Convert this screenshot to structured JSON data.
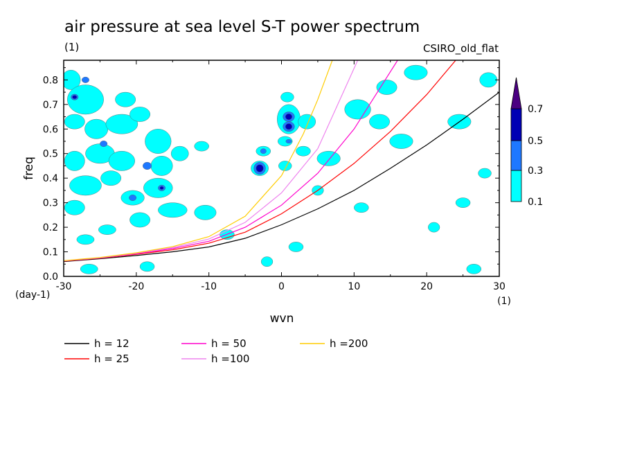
{
  "chart_data": {
    "type": "heatmap",
    "title": "air pressure at sea level S-T power spectrum",
    "subtitle_left": "(1)",
    "subtitle_right": "CSIRO_old_flat",
    "xlabel": "wvn",
    "ylabel": "freq",
    "x_unit": "(1)",
    "y_unit": "(day-1)",
    "xlim": [
      -30,
      30
    ],
    "ylim": [
      0,
      0.88
    ],
    "x_ticks": [
      -30,
      -20,
      -10,
      0,
      10,
      20,
      30
    ],
    "x_tick_labels": [
      "-30",
      "-20",
      "-10",
      "0",
      "10",
      "20",
      "30"
    ],
    "y_ticks": [
      0,
      0.1,
      0.2,
      0.3,
      0.4,
      0.5,
      0.6,
      0.7,
      0.8
    ],
    "y_tick_labels": [
      "0.0",
      "0.1",
      "0.2",
      "0.3",
      "0.4",
      "0.5",
      "0.6",
      "0.7",
      "0.8"
    ],
    "colorbar": {
      "levels": [
        0.1,
        0.3,
        0.5,
        0.7
      ],
      "level_labels": [
        "0.1",
        "0.3",
        "0.5",
        "0.7"
      ],
      "colors": [
        "#00ffff",
        "#1e78ff",
        "#0000b4",
        "#4b0082"
      ]
    },
    "series": [
      {
        "name": "h = 12",
        "color": "#000000",
        "x": [
          -30,
          -25,
          -20,
          -15,
          -10,
          -5,
          0,
          5,
          10,
          15,
          20,
          25,
          30
        ],
        "y": [
          0.06,
          0.072,
          0.085,
          0.1,
          0.12,
          0.155,
          0.21,
          0.275,
          0.35,
          0.44,
          0.535,
          0.64,
          0.75
        ]
      },
      {
        "name": "h = 25",
        "color": "#ff0000",
        "x": [
          -30,
          -25,
          -20,
          -15,
          -10,
          -5,
          0,
          5,
          10,
          15,
          20,
          24
        ],
        "y": [
          0.062,
          0.074,
          0.09,
          0.108,
          0.135,
          0.18,
          0.255,
          0.35,
          0.46,
          0.59,
          0.74,
          0.88
        ]
      },
      {
        "name": "h = 50",
        "color": "#ff00cc",
        "x": [
          -30,
          -25,
          -20,
          -15,
          -10,
          -5,
          0,
          5,
          10,
          16
        ],
        "y": [
          0.063,
          0.075,
          0.092,
          0.113,
          0.143,
          0.2,
          0.29,
          0.42,
          0.6,
          0.88
        ]
      },
      {
        "name": "h =100",
        "color": "#ee82ee",
        "x": [
          -30,
          -25,
          -20,
          -15,
          -10,
          -5,
          0,
          5,
          10.5
        ],
        "y": [
          0.063,
          0.076,
          0.094,
          0.117,
          0.152,
          0.22,
          0.34,
          0.52,
          0.88
        ]
      },
      {
        "name": "h =200",
        "color": "#ffcc00",
        "x": [
          -30,
          -25,
          -20,
          -15,
          -10,
          -5,
          0,
          3,
          5,
          7
        ],
        "y": [
          0.064,
          0.077,
          0.096,
          0.121,
          0.162,
          0.245,
          0.41,
          0.58,
          0.72,
          0.88
        ]
      }
    ],
    "contour_blobs": [
      {
        "x": -29,
        "y": 0.8,
        "rx": 1.3,
        "ry": 0.04,
        "level": 0.1
      },
      {
        "x": -27,
        "y": 0.72,
        "rx": 2.5,
        "ry": 0.06,
        "level": 0.1
      },
      {
        "x": -28.5,
        "y": 0.63,
        "rx": 1.4,
        "ry": 0.03,
        "level": 0.1
      },
      {
        "x": -25.5,
        "y": 0.6,
        "rx": 1.6,
        "ry": 0.04,
        "level": 0.1
      },
      {
        "x": -22,
        "y": 0.62,
        "rx": 2.2,
        "ry": 0.04,
        "level": 0.1
      },
      {
        "x": -19.5,
        "y": 0.66,
        "rx": 1.4,
        "ry": 0.03,
        "level": 0.1
      },
      {
        "x": -21.5,
        "y": 0.72,
        "rx": 1.4,
        "ry": 0.03,
        "level": 0.1
      },
      {
        "x": -25,
        "y": 0.5,
        "rx": 2.0,
        "ry": 0.04,
        "level": 0.1
      },
      {
        "x": -28.5,
        "y": 0.47,
        "rx": 1.4,
        "ry": 0.04,
        "level": 0.1
      },
      {
        "x": -22,
        "y": 0.47,
        "rx": 1.8,
        "ry": 0.04,
        "level": 0.1
      },
      {
        "x": -17,
        "y": 0.55,
        "rx": 1.8,
        "ry": 0.05,
        "level": 0.1
      },
      {
        "x": -16.5,
        "y": 0.45,
        "rx": 1.5,
        "ry": 0.04,
        "level": 0.1
      },
      {
        "x": -14,
        "y": 0.5,
        "rx": 1.2,
        "ry": 0.03,
        "level": 0.1
      },
      {
        "x": -27,
        "y": 0.37,
        "rx": 2.2,
        "ry": 0.04,
        "level": 0.1
      },
      {
        "x": -23.5,
        "y": 0.4,
        "rx": 1.4,
        "ry": 0.03,
        "level": 0.1
      },
      {
        "x": -20.5,
        "y": 0.32,
        "rx": 1.6,
        "ry": 0.03,
        "level": 0.1
      },
      {
        "x": -17,
        "y": 0.36,
        "rx": 2.0,
        "ry": 0.04,
        "level": 0.1
      },
      {
        "x": -15,
        "y": 0.27,
        "rx": 2.0,
        "ry": 0.03,
        "level": 0.1
      },
      {
        "x": -19.5,
        "y": 0.23,
        "rx": 1.4,
        "ry": 0.03,
        "level": 0.1
      },
      {
        "x": -28.5,
        "y": 0.28,
        "rx": 1.4,
        "ry": 0.03,
        "level": 0.1
      },
      {
        "x": -24,
        "y": 0.19,
        "rx": 1.2,
        "ry": 0.02,
        "level": 0.1
      },
      {
        "x": -27,
        "y": 0.15,
        "rx": 1.2,
        "ry": 0.02,
        "level": 0.1
      },
      {
        "x": -26.5,
        "y": 0.03,
        "rx": 1.2,
        "ry": 0.02,
        "level": 0.1
      },
      {
        "x": -18.5,
        "y": 0.04,
        "rx": 1.0,
        "ry": 0.02,
        "level": 0.1
      },
      {
        "x": -11,
        "y": 0.53,
        "rx": 1.0,
        "ry": 0.02,
        "level": 0.1
      },
      {
        "x": -10.5,
        "y": 0.26,
        "rx": 1.5,
        "ry": 0.03,
        "level": 0.1
      },
      {
        "x": -7.5,
        "y": 0.17,
        "rx": 1.0,
        "ry": 0.02,
        "level": 0.1
      },
      {
        "x": -3,
        "y": 0.44,
        "rx": 1.2,
        "ry": 0.03,
        "level": 0.1
      },
      {
        "x": -2.5,
        "y": 0.51,
        "rx": 1.0,
        "ry": 0.02,
        "level": 0.1
      },
      {
        "x": 1,
        "y": 0.64,
        "rx": 1.6,
        "ry": 0.06,
        "level": 0.1
      },
      {
        "x": 0.8,
        "y": 0.73,
        "rx": 0.9,
        "ry": 0.02,
        "level": 0.1
      },
      {
        "x": 0.5,
        "y": 0.55,
        "rx": 1.0,
        "ry": 0.02,
        "level": 0.1
      },
      {
        "x": 3.5,
        "y": 0.63,
        "rx": 1.2,
        "ry": 0.03,
        "level": 0.1
      },
      {
        "x": 3,
        "y": 0.51,
        "rx": 1.0,
        "ry": 0.02,
        "level": 0.1
      },
      {
        "x": 0.5,
        "y": 0.45,
        "rx": 0.9,
        "ry": 0.02,
        "level": 0.1
      },
      {
        "x": 6.5,
        "y": 0.48,
        "rx": 1.6,
        "ry": 0.03,
        "level": 0.1
      },
      {
        "x": 10.5,
        "y": 0.68,
        "rx": 1.8,
        "ry": 0.04,
        "level": 0.1
      },
      {
        "x": 13.5,
        "y": 0.63,
        "rx": 1.4,
        "ry": 0.03,
        "level": 0.1
      },
      {
        "x": 16.5,
        "y": 0.55,
        "rx": 1.6,
        "ry": 0.03,
        "level": 0.1
      },
      {
        "x": 14.5,
        "y": 0.77,
        "rx": 1.4,
        "ry": 0.03,
        "level": 0.1
      },
      {
        "x": 18.5,
        "y": 0.83,
        "rx": 1.6,
        "ry": 0.03,
        "level": 0.1
      },
      {
        "x": 24.5,
        "y": 0.63,
        "rx": 1.6,
        "ry": 0.03,
        "level": 0.1
      },
      {
        "x": 28.5,
        "y": 0.8,
        "rx": 1.2,
        "ry": 0.03,
        "level": 0.1
      },
      {
        "x": 11,
        "y": 0.28,
        "rx": 1.0,
        "ry": 0.02,
        "level": 0.1
      },
      {
        "x": 5,
        "y": 0.35,
        "rx": 0.8,
        "ry": 0.02,
        "level": 0.1
      },
      {
        "x": 25,
        "y": 0.3,
        "rx": 1.0,
        "ry": 0.02,
        "level": 0.1
      },
      {
        "x": 28,
        "y": 0.42,
        "rx": 0.9,
        "ry": 0.02,
        "level": 0.1
      },
      {
        "x": 21,
        "y": 0.2,
        "rx": 0.8,
        "ry": 0.02,
        "level": 0.1
      },
      {
        "x": 2,
        "y": 0.12,
        "rx": 1.0,
        "ry": 0.02,
        "level": 0.1
      },
      {
        "x": -2,
        "y": 0.06,
        "rx": 0.8,
        "ry": 0.02,
        "level": 0.1
      },
      {
        "x": 26.5,
        "y": 0.03,
        "rx": 1.0,
        "ry": 0.02,
        "level": 0.1
      },
      {
        "x": -28.5,
        "y": 0.73,
        "rx": 0.5,
        "ry": 0.012,
        "level": 0.3
      },
      {
        "x": -27,
        "y": 0.8,
        "rx": 0.5,
        "ry": 0.012,
        "level": 0.3
      },
      {
        "x": -24.5,
        "y": 0.54,
        "rx": 0.5,
        "ry": 0.012,
        "level": 0.3
      },
      {
        "x": -18.5,
        "y": 0.45,
        "rx": 0.6,
        "ry": 0.015,
        "level": 0.3
      },
      {
        "x": -16.5,
        "y": 0.36,
        "rx": 0.5,
        "ry": 0.012,
        "level": 0.3
      },
      {
        "x": -20.5,
        "y": 0.32,
        "rx": 0.5,
        "ry": 0.012,
        "level": 0.3
      },
      {
        "x": -3,
        "y": 0.44,
        "rx": 0.8,
        "ry": 0.025,
        "level": 0.3
      },
      {
        "x": 1,
        "y": 0.65,
        "rx": 0.8,
        "ry": 0.02,
        "level": 0.3
      },
      {
        "x": 1,
        "y": 0.61,
        "rx": 0.8,
        "ry": 0.02,
        "level": 0.3
      },
      {
        "x": 1,
        "y": 0.55,
        "rx": 0.4,
        "ry": 0.008,
        "level": 0.3
      },
      {
        "x": -2.5,
        "y": 0.51,
        "rx": 0.4,
        "ry": 0.01,
        "level": 0.3
      },
      {
        "x": -28.5,
        "y": 0.73,
        "rx": 0.3,
        "ry": 0.007,
        "level": 0.5
      },
      {
        "x": -3,
        "y": 0.44,
        "rx": 0.5,
        "ry": 0.015,
        "level": 0.5
      },
      {
        "x": 1,
        "y": 0.65,
        "rx": 0.45,
        "ry": 0.012,
        "level": 0.5
      },
      {
        "x": 1,
        "y": 0.61,
        "rx": 0.45,
        "ry": 0.012,
        "level": 0.5
      },
      {
        "x": -16.5,
        "y": 0.36,
        "rx": 0.25,
        "ry": 0.006,
        "level": 0.5
      }
    ],
    "grid": false,
    "legend_placement": "below-plot"
  }
}
